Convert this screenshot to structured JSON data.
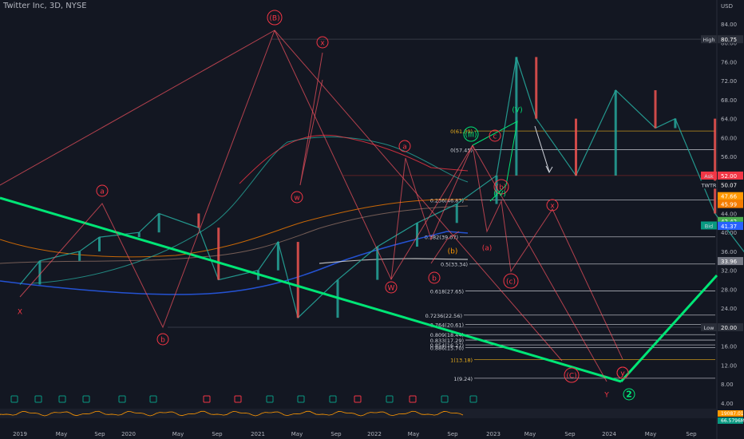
{
  "header": {
    "title": "Twitter Inc, 3D, NYSE"
  },
  "price_axis": {
    "currency": "USD",
    "ticks": [
      "84.00",
      "80.00",
      "76.00",
      "72.00",
      "68.00",
      "64.00",
      "60.00",
      "56.00",
      "52.00",
      "48.00",
      "44.00",
      "40.00",
      "36.00",
      "32.00",
      "28.00",
      "24.00",
      "20.00",
      "16.00",
      "12.00",
      "8.00",
      "4.00"
    ],
    "range": [
      4,
      86
    ]
  },
  "time_axis": [
    "2019",
    "May",
    "Sep",
    "2020",
    "May",
    "Sep",
    "2021",
    "May",
    "Sep",
    "2022",
    "May",
    "Sep",
    "2023",
    "May",
    "Sep",
    "2024",
    "May",
    "Sep"
  ],
  "tags": [
    {
      "label": "High",
      "value": "80.75",
      "price": 80.75,
      "color": "#2a2e39",
      "kind": "label"
    },
    {
      "label": "Ask",
      "value": "52.00",
      "price": 52.0,
      "color": "#f23645",
      "kind": "label"
    },
    {
      "label": "TWTR",
      "value": "50.07",
      "price": 50.07,
      "color": "#131722",
      "kind": "label"
    },
    {
      "label": "",
      "value": "47.66",
      "price": 47.66,
      "color": "#ff9800",
      "kind": "plain"
    },
    {
      "label": "",
      "value": "45.99",
      "price": 45.99,
      "color": "#f57c00",
      "kind": "plain"
    },
    {
      "label": "",
      "value": "42.42",
      "price": 42.42,
      "color": "#4caf50",
      "kind": "plain"
    },
    {
      "label": "Bid",
      "value": "41.47",
      "price": 41.47,
      "color": "#089981",
      "kind": "label"
    },
    {
      "label": "",
      "value": "41.37",
      "price": 41.37,
      "color": "#2962ff",
      "kind": "plain"
    },
    {
      "label": "",
      "value": "33.96",
      "price": 33.96,
      "color": "#787b86",
      "kind": "plain"
    },
    {
      "label": "Low",
      "value": "20.00",
      "price": 20.0,
      "color": "#2a2e39",
      "kind": "label"
    }
  ],
  "fib_levels": [
    {
      "label": "0(61.39)",
      "price": 61.39,
      "color": "#f0b21b"
    },
    {
      "label": "0(57.45)",
      "price": 57.45,
      "color": "#d1d4dc"
    },
    {
      "label": "0.236(46.87)",
      "price": 46.87,
      "color": "#d1d4dc"
    },
    {
      "label": "0.382(39.07)",
      "price": 39.07,
      "color": "#d1d4dc"
    },
    {
      "label": "0.5(33.34)",
      "price": 33.34,
      "color": "#d1d4dc"
    },
    {
      "label": "0.618(27.65)",
      "price": 27.65,
      "color": "#d1d4dc"
    },
    {
      "label": "0.7236(22.56)",
      "price": 22.56,
      "color": "#d1d4dc"
    },
    {
      "label": "0.764(20.61)",
      "price": 20.61,
      "color": "#d1d4dc"
    },
    {
      "label": "0.809(18.44)",
      "price": 18.44,
      "color": "#d1d4dc"
    },
    {
      "label": "0.833(17.29)",
      "price": 17.29,
      "color": "#d1d4dc"
    },
    {
      "label": "0.854(16.27)",
      "price": 16.27,
      "color": "#d1d4dc"
    },
    {
      "label": "0.886(15.70)",
      "price": 15.7,
      "color": "#d1d4dc"
    },
    {
      "label": "1(13.18)",
      "price": 13.18,
      "color": "#f0b21b"
    },
    {
      "label": "1(9.24)",
      "price": 9.24,
      "color": "#d1d4dc"
    }
  ],
  "wave_labels": [
    {
      "text": "(B)",
      "circled": true,
      "color": "#f23645"
    },
    {
      "text": "x",
      "circled": true,
      "color": "#f23645"
    },
    {
      "text": "a",
      "circled": true,
      "color": "#f23645"
    },
    {
      "text": "a",
      "circled": true,
      "color": "#f23645"
    },
    {
      "text": "X",
      "circled": false,
      "color": "#f23645"
    },
    {
      "text": "b",
      "circled": true,
      "color": "#f23645"
    },
    {
      "text": "w",
      "circled": true,
      "color": "#f23645"
    },
    {
      "text": "W",
      "circled": true,
      "color": "#f23645"
    },
    {
      "text": "b",
      "circled": true,
      "color": "#f23645"
    },
    {
      "text": "(b)",
      "circled": false,
      "color": "#ff9800"
    },
    {
      "text": "(V)",
      "circled": false,
      "color": "#00e676"
    },
    {
      "text": "(III)",
      "circled": true,
      "color": "#00e676"
    },
    {
      "text": "y",
      "circled": true,
      "color": "#f23645"
    },
    {
      "text": "c",
      "circled": true,
      "color": "#f23645"
    },
    {
      "text": "(b)",
      "circled": true,
      "color": "#f23645"
    },
    {
      "text": "(IV)",
      "circled": false,
      "color": "#00e676"
    },
    {
      "text": "x",
      "circled": true,
      "color": "#f23645"
    },
    {
      "text": "(a)",
      "circled": false,
      "color": "#f23645"
    },
    {
      "text": "(c)",
      "circled": true,
      "color": "#f23645"
    },
    {
      "text": "(C)",
      "circled": true,
      "color": "#f23645"
    },
    {
      "text": "y",
      "circled": true,
      "color": "#f23645"
    },
    {
      "text": "Y",
      "circled": false,
      "color": "#f23645"
    },
    {
      "text": "2",
      "circled": true,
      "color": "#00e676"
    }
  ],
  "chart_data": {
    "type": "line",
    "title": "Twitter Inc, 3D, NYSE",
    "ylim": [
      4,
      86
    ],
    "grid": false,
    "price_path": [
      {
        "x": "2019-01",
        "y": 29
      },
      {
        "x": "2019-02",
        "y": 34
      },
      {
        "x": "2019-04",
        "y": 36
      },
      {
        "x": "2019-05",
        "y": 39
      },
      {
        "x": "2019-07",
        "y": 40
      },
      {
        "x": "2019-08",
        "y": 44
      },
      {
        "x": "2019-10",
        "y": 41
      },
      {
        "x": "2019-11",
        "y": 30
      },
      {
        "x": "2020-01",
        "y": 32
      },
      {
        "x": "2020-02",
        "y": 38
      },
      {
        "x": "2020-03",
        "y": 22
      },
      {
        "x": "2020-05",
        "y": 30
      },
      {
        "x": "2020-07",
        "y": 37
      },
      {
        "x": "2020-09",
        "y": 42
      },
      {
        "x": "2020-11",
        "y": 46
      },
      {
        "x": "2021-01",
        "y": 52
      },
      {
        "x": "2021-02",
        "y": 77
      },
      {
        "x": "2021-03",
        "y": 64
      },
      {
        "x": "2021-05",
        "y": 52
      },
      {
        "x": "2021-07",
        "y": 70
      },
      {
        "x": "2021-09",
        "y": 62
      },
      {
        "x": "2021-10",
        "y": 64
      },
      {
        "x": "2021-12",
        "y": 44
      },
      {
        "x": "2022-02",
        "y": 33
      },
      {
        "x": "2022-04",
        "y": 50
      },
      {
        "x": "2022-05",
        "y": 40
      },
      {
        "x": "2022-07",
        "y": 36
      },
      {
        "x": "2022-08",
        "y": 43
      },
      {
        "x": "2022-09",
        "y": 40
      },
      {
        "x": "2022-10",
        "y": 52
      }
    ],
    "moving_averages": [
      {
        "color": "#2962ff",
        "last": 41.37
      },
      {
        "color": "#f57c00",
        "last": 45.99
      },
      {
        "color": "#ff9800",
        "last": 47.66
      },
      {
        "color": "#4caf50",
        "last": 42.42
      },
      {
        "color": "#f23645",
        "last": 52.0
      },
      {
        "color": "#e0e0e0",
        "last": 33.96
      }
    ],
    "trendline": {
      "color": "#00e676",
      "from": {
        "x": "2018-12",
        "y": 47
      },
      "to": {
        "x": "2024-03",
        "y": 10
      }
    },
    "projection": {
      "color": "#00e676",
      "from": {
        "x": "2024-03",
        "y": 10
      },
      "to": {
        "x": "2024-12",
        "y": 32
      }
    }
  },
  "indicator": {
    "legend": [
      {
        "value": "19087.01",
        "color": "#ff9800"
      },
      {
        "value": "66.5796M",
        "color": "#089981"
      }
    ]
  }
}
